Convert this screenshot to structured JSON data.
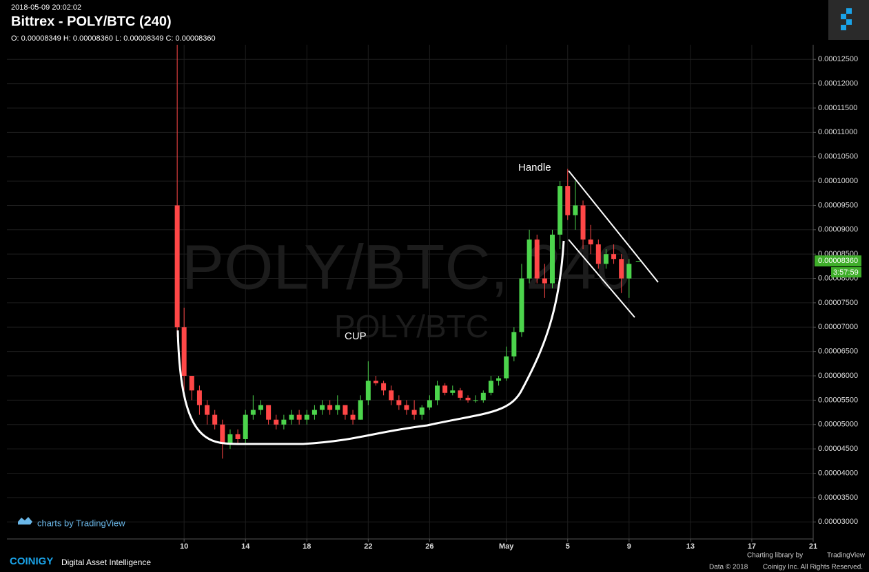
{
  "header": {
    "timestamp": "2018-05-09 20:02:02",
    "title": "Bittrex - POLY/BTC (240)",
    "ohlc": "O: 0.00008349 H: 0.00008360 L: 0.00008349 C: 0.00008360"
  },
  "chart_data": {
    "type": "candlestick",
    "watermark": "POLY/BTC, 240",
    "watermark_sub": "POLY/BTC",
    "annotations": [
      "Handle",
      "CUP"
    ],
    "up_color": "#4cd44c",
    "down_color": "#ff4747",
    "grid": true,
    "x": [
      9.55,
      10.0,
      10.5,
      11.0,
      11.5,
      12.0,
      12.5,
      13.0,
      13.5,
      14.0,
      14.5,
      15.0,
      15.5,
      16.0,
      16.5,
      17.0,
      17.5,
      18.0,
      18.5,
      19.0,
      19.5,
      20.0,
      20.5,
      21.0,
      21.5,
      22.0,
      22.5,
      23.0,
      23.5,
      24.0,
      24.5,
      25.0,
      25.5,
      26.0,
      26.5,
      27.0,
      27.5,
      28.0,
      28.5,
      29.0,
      29.5,
      30.0,
      30.5,
      31.0,
      31.5,
      32.0,
      32.5,
      33.0,
      33.5,
      34.0,
      34.5,
      35.0,
      35.5,
      36.0,
      36.5,
      37.0,
      37.5,
      38.0,
      38.5,
      39.0,
      39.6
    ],
    "open": [
      9.5e-05,
      7e-05,
      6e-05,
      5.7e-05,
      5.4e-05,
      5.2e-05,
      5e-05,
      4.6e-05,
      4.8e-05,
      4.7e-05,
      5.2e-05,
      5.3e-05,
      5.4e-05,
      5.1e-05,
      5e-05,
      5.1e-05,
      5.2e-05,
      5.1e-05,
      5.2e-05,
      5.3e-05,
      5.4e-05,
      5.3e-05,
      5.4e-05,
      5.2e-05,
      5.1e-05,
      5.5e-05,
      5.9e-05,
      5.85e-05,
      5.7e-05,
      5.5e-05,
      5.4e-05,
      5.3e-05,
      5.2e-05,
      5.35e-05,
      5.5e-05,
      5.8e-05,
      5.65e-05,
      5.7e-05,
      5.55e-05,
      5.5e-05,
      5.5e-05,
      5.65e-05,
      5.9e-05,
      5.95e-05,
      6.4e-05,
      6.9e-05,
      8e-05,
      8.8e-05,
      8e-05,
      7.9e-05,
      8.9e-05,
      9.9e-05,
      9.3e-05,
      9.5e-05,
      8.8e-05,
      8.7e-05,
      8.3e-05,
      8.5e-05,
      8.4e-05,
      8e-05,
      8.349e-05
    ],
    "high": [
      0.000128,
      7.4e-05,
      6e-05,
      5.8e-05,
      5.5e-05,
      5.3e-05,
      5.1e-05,
      4.9e-05,
      4.9e-05,
      5.3e-05,
      5.6e-05,
      5.5e-05,
      5.4e-05,
      5.2e-05,
      5.2e-05,
      5.3e-05,
      5.3e-05,
      5.3e-05,
      5.4e-05,
      5.5e-05,
      5.5e-05,
      5.6e-05,
      5.4e-05,
      5.3e-05,
      5.6e-05,
      6.3e-05,
      6e-05,
      5.9e-05,
      5.8e-05,
      5.6e-05,
      5.5e-05,
      5.5e-05,
      5.4e-05,
      5.6e-05,
      5.9e-05,
      5.85e-05,
      5.8e-05,
      5.75e-05,
      5.6e-05,
      5.6e-05,
      5.7e-05,
      6e-05,
      6e-05,
      6.6e-05,
      7e-05,
      8.3e-05,
      9e-05,
      8.9e-05,
      8.3e-05,
      9e-05,
      0.0001,
      0.0001025,
      0.0001,
      9.6e-05,
      9.1e-05,
      8.8e-05,
      8.6e-05,
      8.7e-05,
      8.5e-05,
      8.4e-05,
      8.36e-05
    ],
    "low": [
      6.8e-05,
      5.7e-05,
      5.5e-05,
      5.2e-05,
      5e-05,
      4.9e-05,
      4.3e-05,
      4.5e-05,
      4.6e-05,
      4.6e-05,
      5.1e-05,
      5.2e-05,
      5e-05,
      4.9e-05,
      4.9e-05,
      5e-05,
      5e-05,
      5e-05,
      5.1e-05,
      5.2e-05,
      5.2e-05,
      5.2e-05,
      5.1e-05,
      5e-05,
      5.1e-05,
      5.4e-05,
      5.8e-05,
      5.6e-05,
      5.4e-05,
      5.3e-05,
      5.2e-05,
      5.1e-05,
      5.1e-05,
      5.3e-05,
      5.4e-05,
      5.6e-05,
      5.6e-05,
      5.5e-05,
      5.45e-05,
      5.45e-05,
      5.45e-05,
      5.6e-05,
      5.8e-05,
      5.9e-05,
      6.3e-05,
      6.8e-05,
      7.9e-05,
      7.9e-05,
      7.6e-05,
      7.8e-05,
      8.6e-05,
      9.2e-05,
      9e-05,
      8.6e-05,
      8.5e-05,
      8.2e-05,
      8.2e-05,
      8.3e-05,
      7.7e-05,
      7.6e-05,
      8.349e-05
    ],
    "close": [
      7e-05,
      6e-05,
      5.7e-05,
      5.4e-05,
      5.2e-05,
      5e-05,
      4.6e-05,
      4.8e-05,
      4.7e-05,
      5.2e-05,
      5.3e-05,
      5.4e-05,
      5.1e-05,
      5e-05,
      5.1e-05,
      5.2e-05,
      5.1e-05,
      5.2e-05,
      5.3e-05,
      5.4e-05,
      5.3e-05,
      5.4e-05,
      5.2e-05,
      5.1e-05,
      5.5e-05,
      5.9e-05,
      5.85e-05,
      5.7e-05,
      5.5e-05,
      5.4e-05,
      5.3e-05,
      5.2e-05,
      5.35e-05,
      5.5e-05,
      5.8e-05,
      5.65e-05,
      5.7e-05,
      5.55e-05,
      5.5e-05,
      5.5e-05,
      5.65e-05,
      5.9e-05,
      5.95e-05,
      6.4e-05,
      6.9e-05,
      8e-05,
      8.8e-05,
      8e-05,
      7.9e-05,
      8.9e-05,
      9.9e-05,
      9.3e-05,
      9.5e-05,
      8.8e-05,
      8.7e-05,
      8.3e-05,
      8.5e-05,
      8.4e-05,
      8e-05,
      8.3e-05,
      8.36e-05
    ],
    "xlim": [
      -1.55,
      51.0
    ],
    "xticks": [
      10,
      14,
      18,
      22,
      26,
      {
        "value": 31,
        "label": "May"
      },
      {
        "value": 35,
        "label": "5"
      },
      {
        "value": 39,
        "label": "9"
      },
      {
        "value": 43,
        "label": "13"
      },
      {
        "value": 47,
        "label": "17"
      },
      {
        "value": 51,
        "label": "21"
      }
    ],
    "ylim": [
      2.65e-05,
      0.000128
    ],
    "yticks": [
      {
        "value": 3e-05,
        "label": "0.00003000"
      },
      {
        "value": 3.5e-05,
        "label": "0.00003500"
      },
      {
        "value": 4e-05,
        "label": "0.00004000"
      },
      {
        "value": 4.5e-05,
        "label": "0.00004500"
      },
      {
        "value": 5e-05,
        "label": "0.00005000"
      },
      {
        "value": 5.5e-05,
        "label": "0.00005500"
      },
      {
        "value": 6e-05,
        "label": "0.00006000"
      },
      {
        "value": 6.5e-05,
        "label": "0.00006500"
      },
      {
        "value": 7e-05,
        "label": "0.00007000"
      },
      {
        "value": 7.5e-05,
        "label": "0.00007500"
      },
      {
        "value": 8e-05,
        "label": "0.00008000"
      },
      {
        "value": 8.5e-05,
        "label": "0.00008500"
      },
      {
        "value": 9e-05,
        "label": "0.00009000"
      },
      {
        "value": 9.5e-05,
        "label": "0.00009500"
      },
      {
        "value": 0.0001,
        "label": "0.00010000"
      },
      {
        "value": 0.000105,
        "label": "0.00010500"
      },
      {
        "value": 0.00011,
        "label": "0.00011000"
      },
      {
        "value": 0.000115,
        "label": "0.00011500"
      },
      {
        "value": 0.00012,
        "label": "0.00012000"
      },
      {
        "value": 0.000125,
        "label": "0.00012500"
      }
    ],
    "last_price": {
      "value": 8.36e-05,
      "label": "0.00008360"
    },
    "countdown": "3:57:59"
  },
  "footer": {
    "branding": "charts by TradingView",
    "brand": "COINIGY",
    "tagline": "Digital Asset Intelligence",
    "library": "Charting library by",
    "library_name": "TradingView",
    "copyright": "Data © 2018",
    "rights": "Coinigy Inc. All Rights Reserved."
  }
}
